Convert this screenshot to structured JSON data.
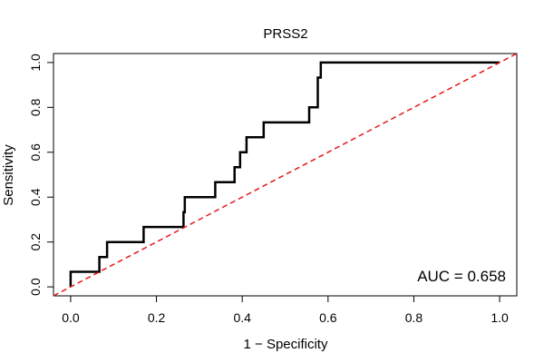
{
  "chart_data": {
    "type": "line",
    "title": "PRSS2",
    "xlabel": "1 − Specificity",
    "ylabel": "Sensitivity",
    "xlim": [
      -0.04,
      1.04
    ],
    "ylim": [
      -0.04,
      1.04
    ],
    "xticks": [
      0.0,
      0.2,
      0.4,
      0.6,
      0.8,
      1.0
    ],
    "xtick_labels": [
      "0.0",
      "0.2",
      "0.4",
      "0.6",
      "0.8",
      "1.0"
    ],
    "yticks": [
      0.0,
      0.2,
      0.4,
      0.6,
      0.8,
      1.0
    ],
    "ytick_labels": [
      "0.0",
      "0.2",
      "0.4",
      "0.6",
      "0.8",
      "1.0"
    ],
    "grid": false,
    "series": [
      {
        "color": "#000000",
        "style": "solid",
        "x": [
          0,
          0,
          0.067,
          0.067,
          0.085,
          0.085,
          0.17,
          0.17,
          0.263,
          0.263,
          0.266,
          0.266,
          0.337,
          0.337,
          0.382,
          0.382,
          0.395,
          0.395,
          0.41,
          0.41,
          0.45,
          0.45,
          0.556,
          0.556,
          0.576,
          0.576,
          0.583,
          0.583,
          1.0
        ],
        "y": [
          0,
          0.067,
          0.067,
          0.133,
          0.133,
          0.2,
          0.2,
          0.267,
          0.267,
          0.333,
          0.333,
          0.4,
          0.4,
          0.467,
          0.467,
          0.533,
          0.533,
          0.6,
          0.6,
          0.667,
          0.667,
          0.733,
          0.733,
          0.8,
          0.8,
          0.933,
          0.933,
          1.0,
          1.0
        ]
      },
      {
        "color": "#e41a1c",
        "style": "dashed",
        "x": [
          -0.04,
          1.04
        ],
        "y": [
          -0.04,
          1.04
        ]
      }
    ],
    "annotation": "AUC = 0.658"
  }
}
